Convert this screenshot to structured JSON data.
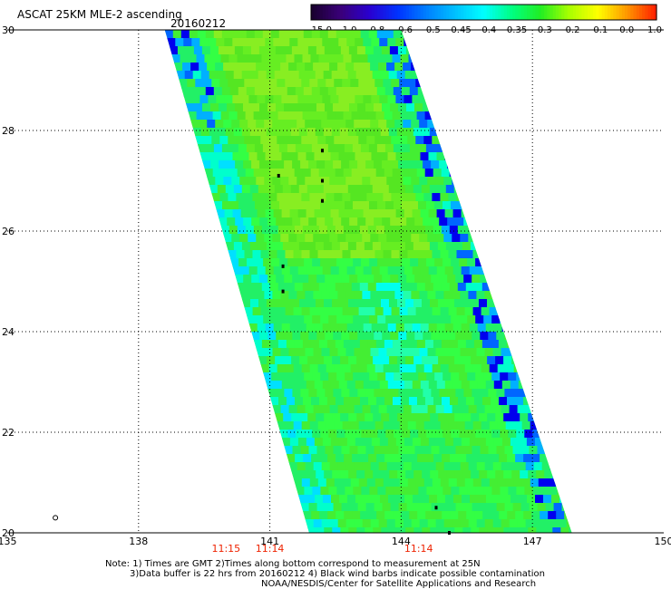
{
  "title": "ASCAT 25KM MLE-2 ascending",
  "date": "20160212",
  "colorbar": {
    "labels": [
      "-15.0",
      "-1.0",
      "-0.8",
      "-0.6",
      "-0.5",
      "-0.45",
      "-0.4",
      "-0.35",
      "-0.3",
      "-0.2",
      "-0.1",
      "0.0",
      "1.0"
    ],
    "colors": [
      "#1a0030",
      "#3a007a",
      "#2a00d0",
      "#0033ff",
      "#0080ff",
      "#00c0ff",
      "#00ffff",
      "#00ff80",
      "#22ee22",
      "#aaff00",
      "#ffff00",
      "#ff9900",
      "#ff2200"
    ]
  },
  "map": {
    "lon_labels": [
      "135",
      "138",
      "141",
      "144",
      "147",
      "150"
    ],
    "lat_labels": [
      "30",
      "28",
      "26",
      "24",
      "22",
      "20"
    ],
    "lon_range": [
      135,
      150
    ],
    "lat_range": [
      20,
      30
    ],
    "grid_lons": [
      138,
      141,
      144,
      147
    ],
    "grid_lats": [
      22,
      24,
      26,
      28
    ],
    "swath_corners": {
      "top_left": [
        138.6,
        30
      ],
      "top_right": [
        144.0,
        30
      ],
      "bottom_right": [
        147.9,
        20
      ],
      "bottom_left": [
        141.9,
        20
      ]
    },
    "islands": [
      [
        141.2,
        27.1
      ],
      [
        142.2,
        27.6
      ],
      [
        142.2,
        27.0
      ],
      [
        142.2,
        26.6
      ],
      [
        141.3,
        25.3
      ],
      [
        141.3,
        24.8
      ],
      [
        144.8,
        20.5
      ],
      [
        145.1,
        20.0
      ]
    ],
    "open_circle": [
      136.1,
      20.3
    ]
  },
  "times": [
    {
      "label": "11:15",
      "lon": 140.0
    },
    {
      "label": "11:14",
      "lon": 141.0
    },
    {
      "label": "11:14",
      "lon": 144.4
    }
  ],
  "time_color": "#ee2200",
  "notes": [
    "Note: 1) Times are GMT 2)Times along bottom correspond to measurement at 25N",
    "3)Data buffer is 22 hrs from 20160212 4) Black wind barbs indicate possible contamination",
    "NOAA/NESDIS/Center for Satellite Applications and Research"
  ]
}
